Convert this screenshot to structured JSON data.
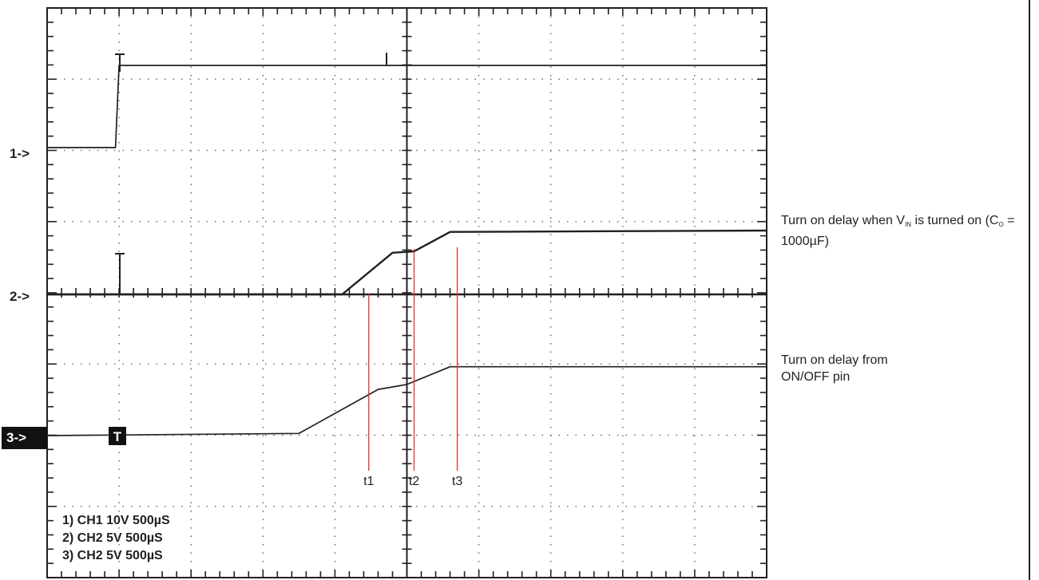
{
  "chart_data": {
    "type": "line",
    "title": "",
    "grid": true,
    "channels": [
      {
        "marker": "1->",
        "x": [
          0,
          0.95,
          1.0,
          10
        ],
        "y": [
          0,
          0,
          1.0,
          1.0
        ]
      },
      {
        "marker": "2->",
        "x": [
          0,
          4.1,
          4.8,
          5.1,
          5.6,
          10
        ],
        "y": [
          0,
          0,
          0.6,
          0.62,
          0.9,
          0.92
        ]
      },
      {
        "marker": "3->",
        "x": [
          0,
          3.5,
          4.6,
          5.0,
          5.6,
          10
        ],
        "y": [
          0,
          0.03,
          0.65,
          0.72,
          0.97,
          0.97
        ]
      }
    ],
    "trigger_label": "T",
    "cursors": [
      {
        "label": "t1",
        "x": 4.47
      },
      {
        "label": "t2",
        "x": 5.1
      },
      {
        "label": "t3",
        "x": 5.7
      }
    ],
    "cursor_color": "#e0312f",
    "settings": [
      "1) CH1  10V  500µS",
      "2) CH2    5V  500µS",
      "3) CH2    5V  500µS"
    ]
  },
  "annotations": {
    "vin": {
      "before": "Turn on delay when V",
      "sub": "IN",
      "mid": " is turned on (C",
      "sub2": "O",
      "after": " = 1000µF)"
    },
    "onoff": {
      "line1": "Turn on delay from",
      "line2": "ON/OFF pin"
    }
  }
}
